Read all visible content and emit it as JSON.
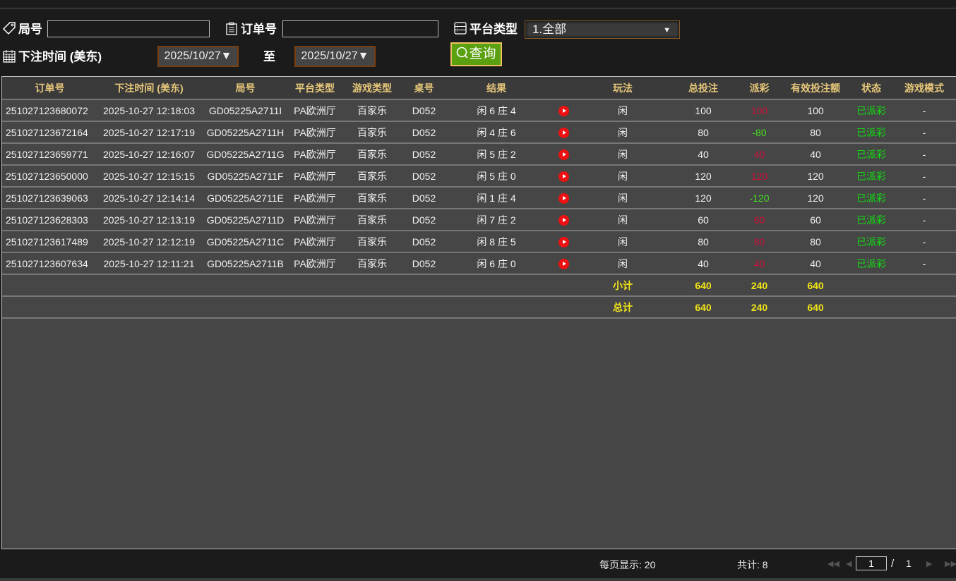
{
  "filters": {
    "round_label": "局号",
    "round_value": "",
    "order_label": "订单号",
    "order_value": "",
    "platform_label": "平台类型",
    "platform_selected": "1.全部",
    "time_label": "下注时间 (美东)",
    "date_from": "2025/10/27▼",
    "to_label": "至",
    "date_to": "2025/10/27▼",
    "search_label": "查询"
  },
  "table": {
    "headers": [
      "订单号",
      "下注时间 (美东)",
      "局号",
      "平台类型",
      "游戏类型",
      "桌号",
      "结果",
      "",
      "玩法",
      "总投注",
      "派彩",
      "有效投注额",
      "状态",
      "游戏模式"
    ],
    "rows": [
      {
        "order": "251027123680072",
        "time": "2025-10-27 12:18:03",
        "round": "GD05225A2711I",
        "platform": "PA欧洲厅",
        "game": "百家乐",
        "table": "D052",
        "result": "闲 6 庄 4",
        "play": "闲",
        "bet": "100",
        "payout": "100",
        "payout_color": "red",
        "valid": "100",
        "status": "已派彩",
        "mode": "-"
      },
      {
        "order": "251027123672164",
        "time": "2025-10-27 12:17:19",
        "round": "GD05225A2711H",
        "platform": "PA欧洲厅",
        "game": "百家乐",
        "table": "D052",
        "result": "闲 4 庄 6",
        "play": "闲",
        "bet": "80",
        "payout": "-80",
        "payout_color": "green",
        "valid": "80",
        "status": "已派彩",
        "mode": "-"
      },
      {
        "order": "251027123659771",
        "time": "2025-10-27 12:16:07",
        "round": "GD05225A2711G",
        "platform": "PA欧洲厅",
        "game": "百家乐",
        "table": "D052",
        "result": "闲 5 庄 2",
        "play": "闲",
        "bet": "40",
        "payout": "40",
        "payout_color": "red",
        "valid": "40",
        "status": "已派彩",
        "mode": "-"
      },
      {
        "order": "251027123650000",
        "time": "2025-10-27 12:15:15",
        "round": "GD05225A2711F",
        "platform": "PA欧洲厅",
        "game": "百家乐",
        "table": "D052",
        "result": "闲 5 庄 0",
        "play": "闲",
        "bet": "120",
        "payout": "120",
        "payout_color": "red",
        "valid": "120",
        "status": "已派彩",
        "mode": "-"
      },
      {
        "order": "251027123639063",
        "time": "2025-10-27 12:14:14",
        "round": "GD05225A2711E",
        "platform": "PA欧洲厅",
        "game": "百家乐",
        "table": "D052",
        "result": "闲 1 庄 4",
        "play": "闲",
        "bet": "120",
        "payout": "-120",
        "payout_color": "green",
        "valid": "120",
        "status": "已派彩",
        "mode": "-"
      },
      {
        "order": "251027123628303",
        "time": "2025-10-27 12:13:19",
        "round": "GD05225A2711D",
        "platform": "PA欧洲厅",
        "game": "百家乐",
        "table": "D052",
        "result": "闲 7 庄 2",
        "play": "闲",
        "bet": "60",
        "payout": "60",
        "payout_color": "red",
        "valid": "60",
        "status": "已派彩",
        "mode": "-"
      },
      {
        "order": "251027123617489",
        "time": "2025-10-27 12:12:19",
        "round": "GD05225A2711C",
        "platform": "PA欧洲厅",
        "game": "百家乐",
        "table": "D052",
        "result": "闲 8 庄 5",
        "play": "闲",
        "bet": "80",
        "payout": "80",
        "payout_color": "red",
        "valid": "80",
        "status": "已派彩",
        "mode": "-"
      },
      {
        "order": "251027123607634",
        "time": "2025-10-27 12:11:21",
        "round": "GD05225A2711B",
        "platform": "PA欧洲厅",
        "game": "百家乐",
        "table": "D052",
        "result": "闲 6 庄 0",
        "play": "闲",
        "bet": "40",
        "payout": "40",
        "payout_color": "red",
        "valid": "40",
        "status": "已派彩",
        "mode": "-"
      }
    ],
    "subtotal": {
      "label": "小计",
      "bet": "640",
      "payout": "240",
      "valid": "640"
    },
    "total": {
      "label": "总计",
      "bet": "640",
      "payout": "240",
      "valid": "640"
    }
  },
  "footer": {
    "per_page": "每页显示: 20",
    "count": "共计: 8",
    "page": "1",
    "separator": "/",
    "pages": "1"
  },
  "colors": {
    "header_text": "#e7c87a",
    "payout_positive": "#d0103a",
    "payout_negative": "#44dd22",
    "status": "#11dd11",
    "totals": "#f2e616",
    "search_button": "#5aa010"
  }
}
